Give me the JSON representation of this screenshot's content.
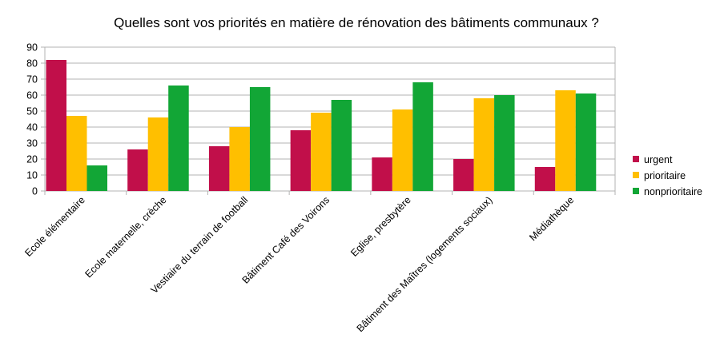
{
  "chart_data": {
    "type": "bar",
    "title": "Quelles sont vos priorités en matière de rénovation des bâtiments communaux ?",
    "xlabel": "",
    "ylabel": "",
    "ylim": [
      0,
      90
    ],
    "yticks": [
      0,
      10,
      20,
      30,
      40,
      50,
      60,
      70,
      80,
      90
    ],
    "grid": true,
    "legend_position": "right",
    "categories": [
      "Ecole élémentaire",
      "Ecole maternelle, crèche",
      "Vestiaire du terrain de football",
      "Bâtiment Café des Voirons",
      "Eglise, presbytère",
      "Bâtiment des Maîtres (logements sociaux)",
      "Médiathèque"
    ],
    "series": [
      {
        "name": "urgent",
        "color": "#c10f4a",
        "values": [
          82,
          26,
          28,
          38,
          21,
          20,
          15
        ]
      },
      {
        "name": "prioritaire",
        "color": "#ffbf00",
        "values": [
          47,
          46,
          40,
          49,
          51,
          58,
          63
        ]
      },
      {
        "name": "nonprioritaire",
        "color": "#12a636",
        "values": [
          16,
          66,
          65,
          57,
          68,
          60,
          61
        ]
      }
    ]
  }
}
